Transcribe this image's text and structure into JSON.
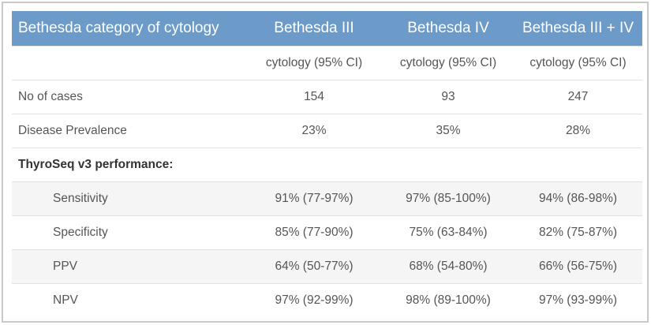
{
  "header": [
    "Bethesda category of cytology",
    "Bethesda III",
    "Bethesda IV",
    "Bethesda III + IV"
  ],
  "subheader": [
    "",
    "cytology (95% CI)",
    "cytology (95% CI)",
    "cytology (95% CI)"
  ],
  "rows": [
    [
      "No of cases",
      "154",
      "93",
      "247"
    ],
    [
      "Disease Prevalence",
      "23%",
      "35%",
      "28%"
    ]
  ],
  "section": "ThyroSeq v3 performance:",
  "metrics": [
    [
      "Sensitivity",
      "91% (77-97%)",
      "97% (85-100%)",
      "94% (86-98%)"
    ],
    [
      "Specificity",
      "85% (77-90%)",
      "75% (63-84%)",
      "82% (75-87%)"
    ],
    [
      "PPV",
      "64% (50-77%)",
      "68% (54-80%)",
      "66% (56-75%)"
    ],
    [
      "NPV",
      "97% (92-99%)",
      "98% (89-100%)",
      "97% (93-99%)"
    ]
  ]
}
